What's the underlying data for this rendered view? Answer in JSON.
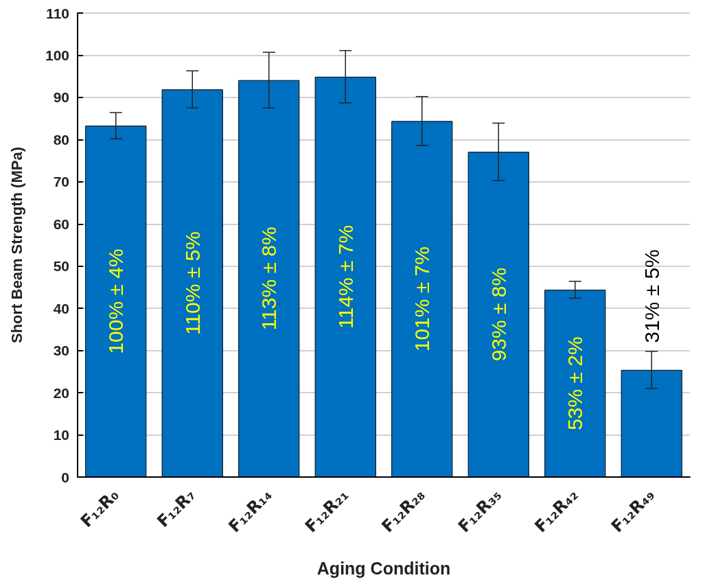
{
  "chart_data": {
    "type": "bar",
    "xlabel": "Aging Condition",
    "ylabel": "Short Beam Strength (MPa)",
    "categories": [
      "F₁₂R₀",
      "F₁₂R₇",
      "F₁₂R₁₄",
      "F₁₂R₂₁",
      "F₁₂R₂₈",
      "F₁₂R₃₅",
      "F₁₂R₄₂",
      "F₁₂R₄₉"
    ],
    "values": [
      83.3,
      91.9,
      94.1,
      94.9,
      84.4,
      77.1,
      44.4,
      25.4
    ],
    "errors": [
      3.1,
      4.4,
      6.6,
      6.2,
      5.8,
      6.8,
      2.0,
      4.4
    ],
    "annotations": [
      "100% ± 4%",
      "110% ± 5%",
      "113% ± 8%",
      "114% ± 7%",
      "101% ± 7%",
      "93% ± 8%",
      "53% ± 2%",
      "31% ± 5%"
    ],
    "color": "#0070c0",
    "ylim": [
      0,
      110
    ],
    "yticks": [
      0,
      10,
      20,
      30,
      40,
      50,
      60,
      70,
      80,
      90,
      100,
      110
    ],
    "grid": "y"
  }
}
